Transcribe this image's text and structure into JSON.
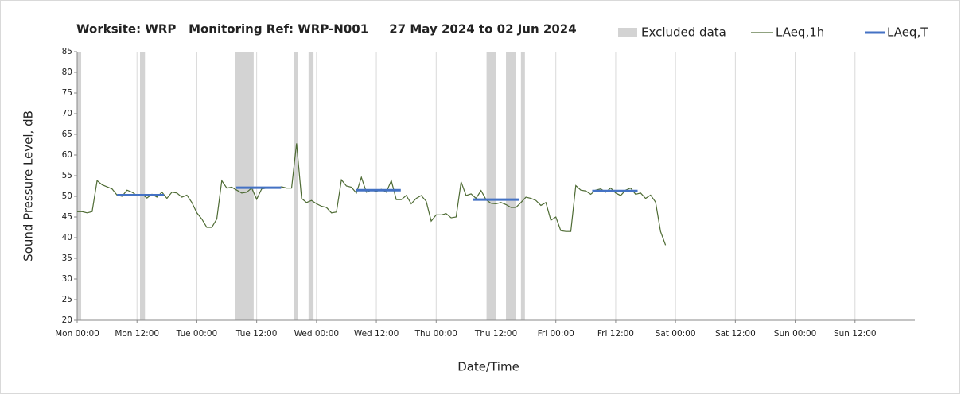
{
  "chart_data": {
    "type": "line",
    "title": "Worksite: WRP   Monitoring Ref: WRP-N001     27 May 2024 to 02 Jun 2024",
    "x_label": "Date/Time",
    "y_label": "Sound Pressure Level, dB",
    "xlim": [
      0,
      168
    ],
    "xticks": [
      {
        "value": 0,
        "label": "Mon 00:00"
      },
      {
        "value": 12,
        "label": "Mon 12:00"
      },
      {
        "value": 24,
        "label": "Tue 00:00"
      },
      {
        "value": 36,
        "label": "Tue 12:00"
      },
      {
        "value": 48,
        "label": "Wed 00:00"
      },
      {
        "value": 60,
        "label": "Wed 12:00"
      },
      {
        "value": 72,
        "label": "Thu 00:00"
      },
      {
        "value": 84,
        "label": "Thu 12:00"
      },
      {
        "value": 96,
        "label": "Fri 00:00"
      },
      {
        "value": 108,
        "label": "Fri 12:00"
      },
      {
        "value": 120,
        "label": "Sat 00:00"
      },
      {
        "value": 132,
        "label": "Sat 12:00"
      },
      {
        "value": 144,
        "label": "Sun 00:00"
      },
      {
        "value": 156,
        "label": "Sun 12:00"
      }
    ],
    "ylim": [
      20,
      85
    ],
    "yticks": [
      20,
      25,
      30,
      35,
      40,
      45,
      50,
      55,
      60,
      65,
      70,
      75,
      80,
      85
    ],
    "x_grid": true,
    "excluded": {
      "name": "Excluded data",
      "color": "#d3d3d3",
      "starts": [
        0,
        12.6,
        31.6,
        43.4,
        46.4,
        82.1,
        86,
        89
      ],
      "ends": [
        0.8,
        13.6,
        35.4,
        44.2,
        47.4,
        84,
        88,
        89.8
      ]
    },
    "series": [
      {
        "name": "LAeq,1h",
        "color": "#4e6b34",
        "x": [
          0,
          1,
          2,
          3,
          4,
          5,
          6,
          7,
          8,
          9,
          10,
          11,
          12,
          13,
          14,
          15,
          16,
          17,
          18,
          19,
          20,
          21,
          22,
          23,
          24,
          25,
          26,
          27,
          28,
          29,
          30,
          31,
          32,
          33,
          34,
          35,
          36,
          37,
          38,
          39,
          40,
          41,
          42,
          43,
          44,
          45,
          46,
          47,
          48,
          49,
          50,
          51,
          52,
          53,
          54,
          55,
          56,
          57,
          58,
          59,
          60,
          61,
          62,
          63,
          64,
          65,
          66,
          67,
          68,
          69,
          70,
          71,
          72,
          73,
          74,
          75,
          76,
          77,
          78,
          79,
          80,
          81,
          82,
          83,
          84,
          85,
          86,
          87,
          88,
          89,
          90,
          91,
          92,
          93,
          94,
          95,
          96,
          97,
          98,
          99,
          100,
          101,
          102,
          103,
          104,
          105,
          106,
          107,
          108,
          109,
          110,
          111,
          112,
          113,
          114,
          115,
          116,
          117,
          118
        ],
        "values": [
          46.3,
          46.3,
          46,
          46.3,
          53.8,
          52.8,
          52.3,
          51.8,
          50.3,
          50,
          51.5,
          51,
          50.2,
          50.5,
          49.6,
          50.5,
          49.8,
          51,
          49.5,
          51,
          50.8,
          49.8,
          50.3,
          48.5,
          46,
          44.5,
          42.5,
          42.5,
          44.5,
          53.8,
          52,
          52.2,
          51.5,
          50.8,
          51,
          52,
          49.3,
          51.8,
          52,
          52.2,
          52,
          52.3,
          52,
          52,
          62.8,
          49.5,
          48.5,
          49,
          48.2,
          47.6,
          47.3,
          46,
          46.2,
          54,
          52.5,
          52.2,
          50.8,
          54.6,
          51,
          51.5,
          51.2,
          51.7,
          51,
          53.8,
          49.2,
          49.2,
          50.2,
          48.2,
          49.5,
          50.2,
          48.8,
          44,
          45.5,
          45.5,
          45.8,
          44.8,
          45,
          53.5,
          50.2,
          50.6,
          49.5,
          51.4,
          49.2,
          48.3,
          48.2,
          48.5,
          48,
          47.3,
          47.3,
          48.5,
          49.8,
          49.5,
          49,
          47.8,
          48.5,
          44.2,
          45,
          41.7,
          41.5,
          41.5,
          52.6,
          51.5,
          51.3,
          50.5,
          51.5,
          51.8,
          51,
          52,
          50.8,
          50.2,
          51.5,
          52,
          50.5,
          50.8,
          49.5,
          50.3,
          48.6,
          41.5,
          38.2
        ]
      },
      {
        "name": "LAeq,T",
        "color": "#4472c4",
        "x_start": [
          8,
          31.9,
          55.9,
          79.4,
          103.3
        ],
        "x_end": [
          17.4,
          40.9,
          64.9,
          88.6,
          112.4
        ],
        "values": [
          50.3,
          52.1,
          51.5,
          49.2,
          51.3
        ]
      }
    ]
  }
}
